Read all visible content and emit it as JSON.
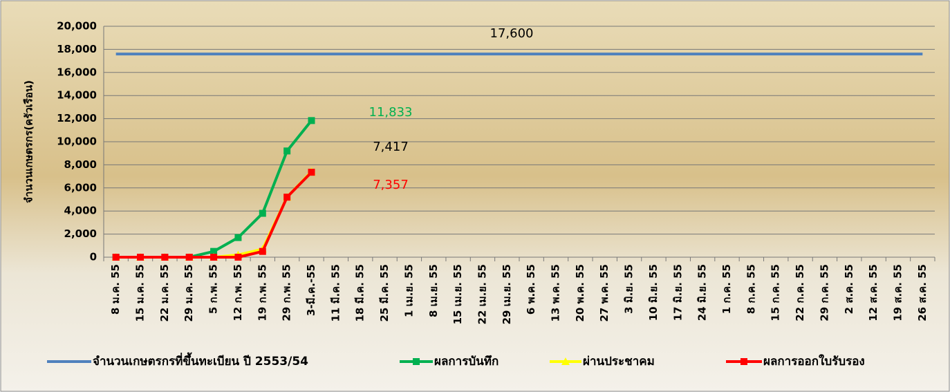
{
  "chart_data": {
    "type": "line",
    "y_label": "จำนวนเกษตรกร(ครัวเรือน)",
    "categories": [
      "8 ม.ค. 55",
      "15 ม.ค. 55",
      "22 ม.ค. 55",
      "29 ม.ค. 55",
      "5 ก.พ. 55",
      "12 ก.พ. 55",
      "19 ก.พ. 55",
      "29 ก.พ. 55",
      "3-มี.ค.-55",
      "11 มี.ค. 55",
      "18 มี.ค. 55",
      "25 มี.ค. 55",
      "1 เม.ย. 55",
      "8 เม.ย. 55",
      "15 เม.ย. 55",
      "22 เม.ย. 55",
      "29 เม.ย. 55",
      "6 พ.ค. 55",
      "13 พ.ค. 55",
      "20 พ.ค. 55",
      "27 พ.ค. 55",
      "3 มิ.ย. 55",
      "10 มิ.ย. 55",
      "17 มิ.ย. 55",
      "24 มิ.ย. 55",
      "1 ก.ค. 55",
      "8 ก.ค. 55",
      "15 ก.ค. 55",
      "22 ก.ค. 55",
      "29 ก.ค. 55",
      "2 ส.ค. 55",
      "12 ส.ค. 55",
      "19 ส.ค. 55",
      "26 ส.ค. 55"
    ],
    "series": [
      {
        "name": "จำนวนเกษตรกรที่ขึ้นทะเบียน ปี 2553/54",
        "color": "#4f81bd",
        "marker": "none",
        "values": [
          17600,
          17600,
          17600,
          17600,
          17600,
          17600,
          17600,
          17600,
          17600,
          17600,
          17600,
          17600,
          17600,
          17600,
          17600,
          17600,
          17600,
          17600,
          17600,
          17600,
          17600,
          17600,
          17600,
          17600,
          17600,
          17600,
          17600,
          17600,
          17600,
          17600,
          17600,
          17600,
          17600,
          17600
        ]
      },
      {
        "name": "ผลการบันทึก",
        "color": "#00b050",
        "marker": "square",
        "values": [
          0,
          0,
          0,
          0,
          500,
          1700,
          3800,
          9200,
          11833,
          null,
          null,
          null,
          null,
          null,
          null,
          null,
          null,
          null,
          null,
          null,
          null,
          null,
          null,
          null,
          null,
          null,
          null,
          null,
          null,
          null,
          null,
          null,
          null,
          null
        ]
      },
      {
        "name": "ผ่านประชาคม",
        "color": "#ffff00",
        "marker": "triangle",
        "values": [
          0,
          0,
          0,
          0,
          0,
          200,
          700,
          5200,
          7417,
          null,
          null,
          null,
          null,
          null,
          null,
          null,
          null,
          null,
          null,
          null,
          null,
          null,
          null,
          null,
          null,
          null,
          null,
          null,
          null,
          null,
          null,
          null,
          null,
          null
        ]
      },
      {
        "name": "ผลการออกใบรับรอง",
        "color": "#ff0000",
        "marker": "square",
        "values": [
          0,
          0,
          0,
          0,
          0,
          0,
          500,
          5200,
          7357,
          null,
          null,
          null,
          null,
          null,
          null,
          null,
          null,
          null,
          null,
          null,
          null,
          null,
          null,
          null,
          null,
          null,
          null,
          null,
          null,
          null,
          null,
          null,
          null,
          null
        ]
      }
    ],
    "annotations": [
      {
        "text": "17,600",
        "color": "#000000"
      },
      {
        "text": "11,833",
        "color": "#00b050"
      },
      {
        "text": "7,417",
        "color": "#000000"
      },
      {
        "text": "7,357",
        "color": "#ff0000"
      }
    ],
    "ylim": [
      0,
      20000
    ],
    "yticks": [
      0,
      {
        "value": 2000,
        "label": "2,000"
      },
      {
        "value": 4000,
        "label": "4,000"
      },
      {
        "value": 6000,
        "label": "6,000"
      },
      {
        "value": 8000,
        "label": "8,000"
      },
      {
        "value": 10000,
        "label": "10,000"
      },
      {
        "value": 12000,
        "label": "12,000"
      },
      {
        "value": 14000,
        "label": "14,000"
      },
      {
        "value": 16000,
        "label": "16,000"
      },
      {
        "value": 18000,
        "label": "18,000"
      },
      {
        "value": 20000,
        "label": "20,000"
      }
    ],
    "grid": true,
    "legend": "bottom"
  }
}
